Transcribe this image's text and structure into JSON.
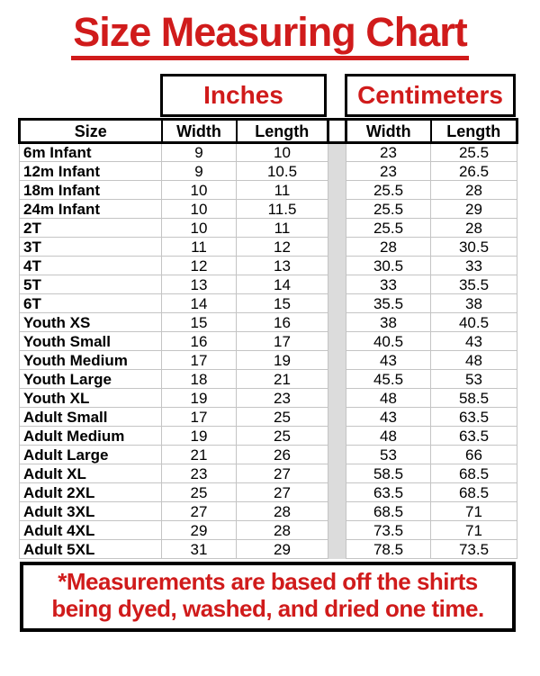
{
  "colors": {
    "accent_red": "#d01b1b",
    "gap_gray": "#dcdcdc",
    "grid_gray": "#c4c4c4",
    "border_black": "#000000"
  },
  "chart_data": {
    "type": "table",
    "title": "Size Measuring Chart",
    "unit_groups": [
      "Inches",
      "Centimeters"
    ],
    "header_labels": [
      "Size",
      "Width",
      "Length",
      "Width",
      "Length"
    ],
    "columns": [
      "Size",
      "Width (in)",
      "Length (in)",
      "Width (cm)",
      "Length (cm)"
    ],
    "rows": [
      [
        "6m Infant",
        9,
        10,
        23,
        25.5
      ],
      [
        "12m Infant",
        9,
        10.5,
        23,
        26.5
      ],
      [
        "18m Infant",
        10,
        11,
        25.5,
        28
      ],
      [
        "24m Infant",
        10,
        11.5,
        25.5,
        29
      ],
      [
        "2T",
        10,
        11,
        25.5,
        28
      ],
      [
        "3T",
        11,
        12,
        28,
        30.5
      ],
      [
        "4T",
        12,
        13,
        30.5,
        33
      ],
      [
        "5T",
        13,
        14,
        33,
        35.5
      ],
      [
        "6T",
        14,
        15,
        35.5,
        38
      ],
      [
        "Youth XS",
        15,
        16,
        38,
        40.5
      ],
      [
        "Youth Small",
        16,
        17,
        40.5,
        43
      ],
      [
        "Youth Medium",
        17,
        19,
        43,
        48
      ],
      [
        "Youth Large",
        18,
        21,
        45.5,
        53
      ],
      [
        "Youth XL",
        19,
        23,
        48,
        58.5
      ],
      [
        "Adult Small",
        17,
        25,
        43,
        63.5
      ],
      [
        "Adult Medium",
        19,
        25,
        48,
        63.5
      ],
      [
        "Adult Large",
        21,
        26,
        53,
        66
      ],
      [
        "Adult XL",
        23,
        27,
        58.5,
        68.5
      ],
      [
        "Adult 2XL",
        25,
        27,
        63.5,
        68.5
      ],
      [
        "Adult 3XL",
        27,
        28,
        68.5,
        71
      ],
      [
        "Adult 4XL",
        29,
        28,
        73.5,
        71
      ],
      [
        "Adult 5XL",
        31,
        29,
        78.5,
        73.5
      ]
    ],
    "footnote_lines": [
      "*Measurements are based off the shirts",
      "being dyed, washed, and dried one time."
    ],
    "footnote": "*Measurements are based off the shirts being dyed, washed, and dried one time."
  }
}
